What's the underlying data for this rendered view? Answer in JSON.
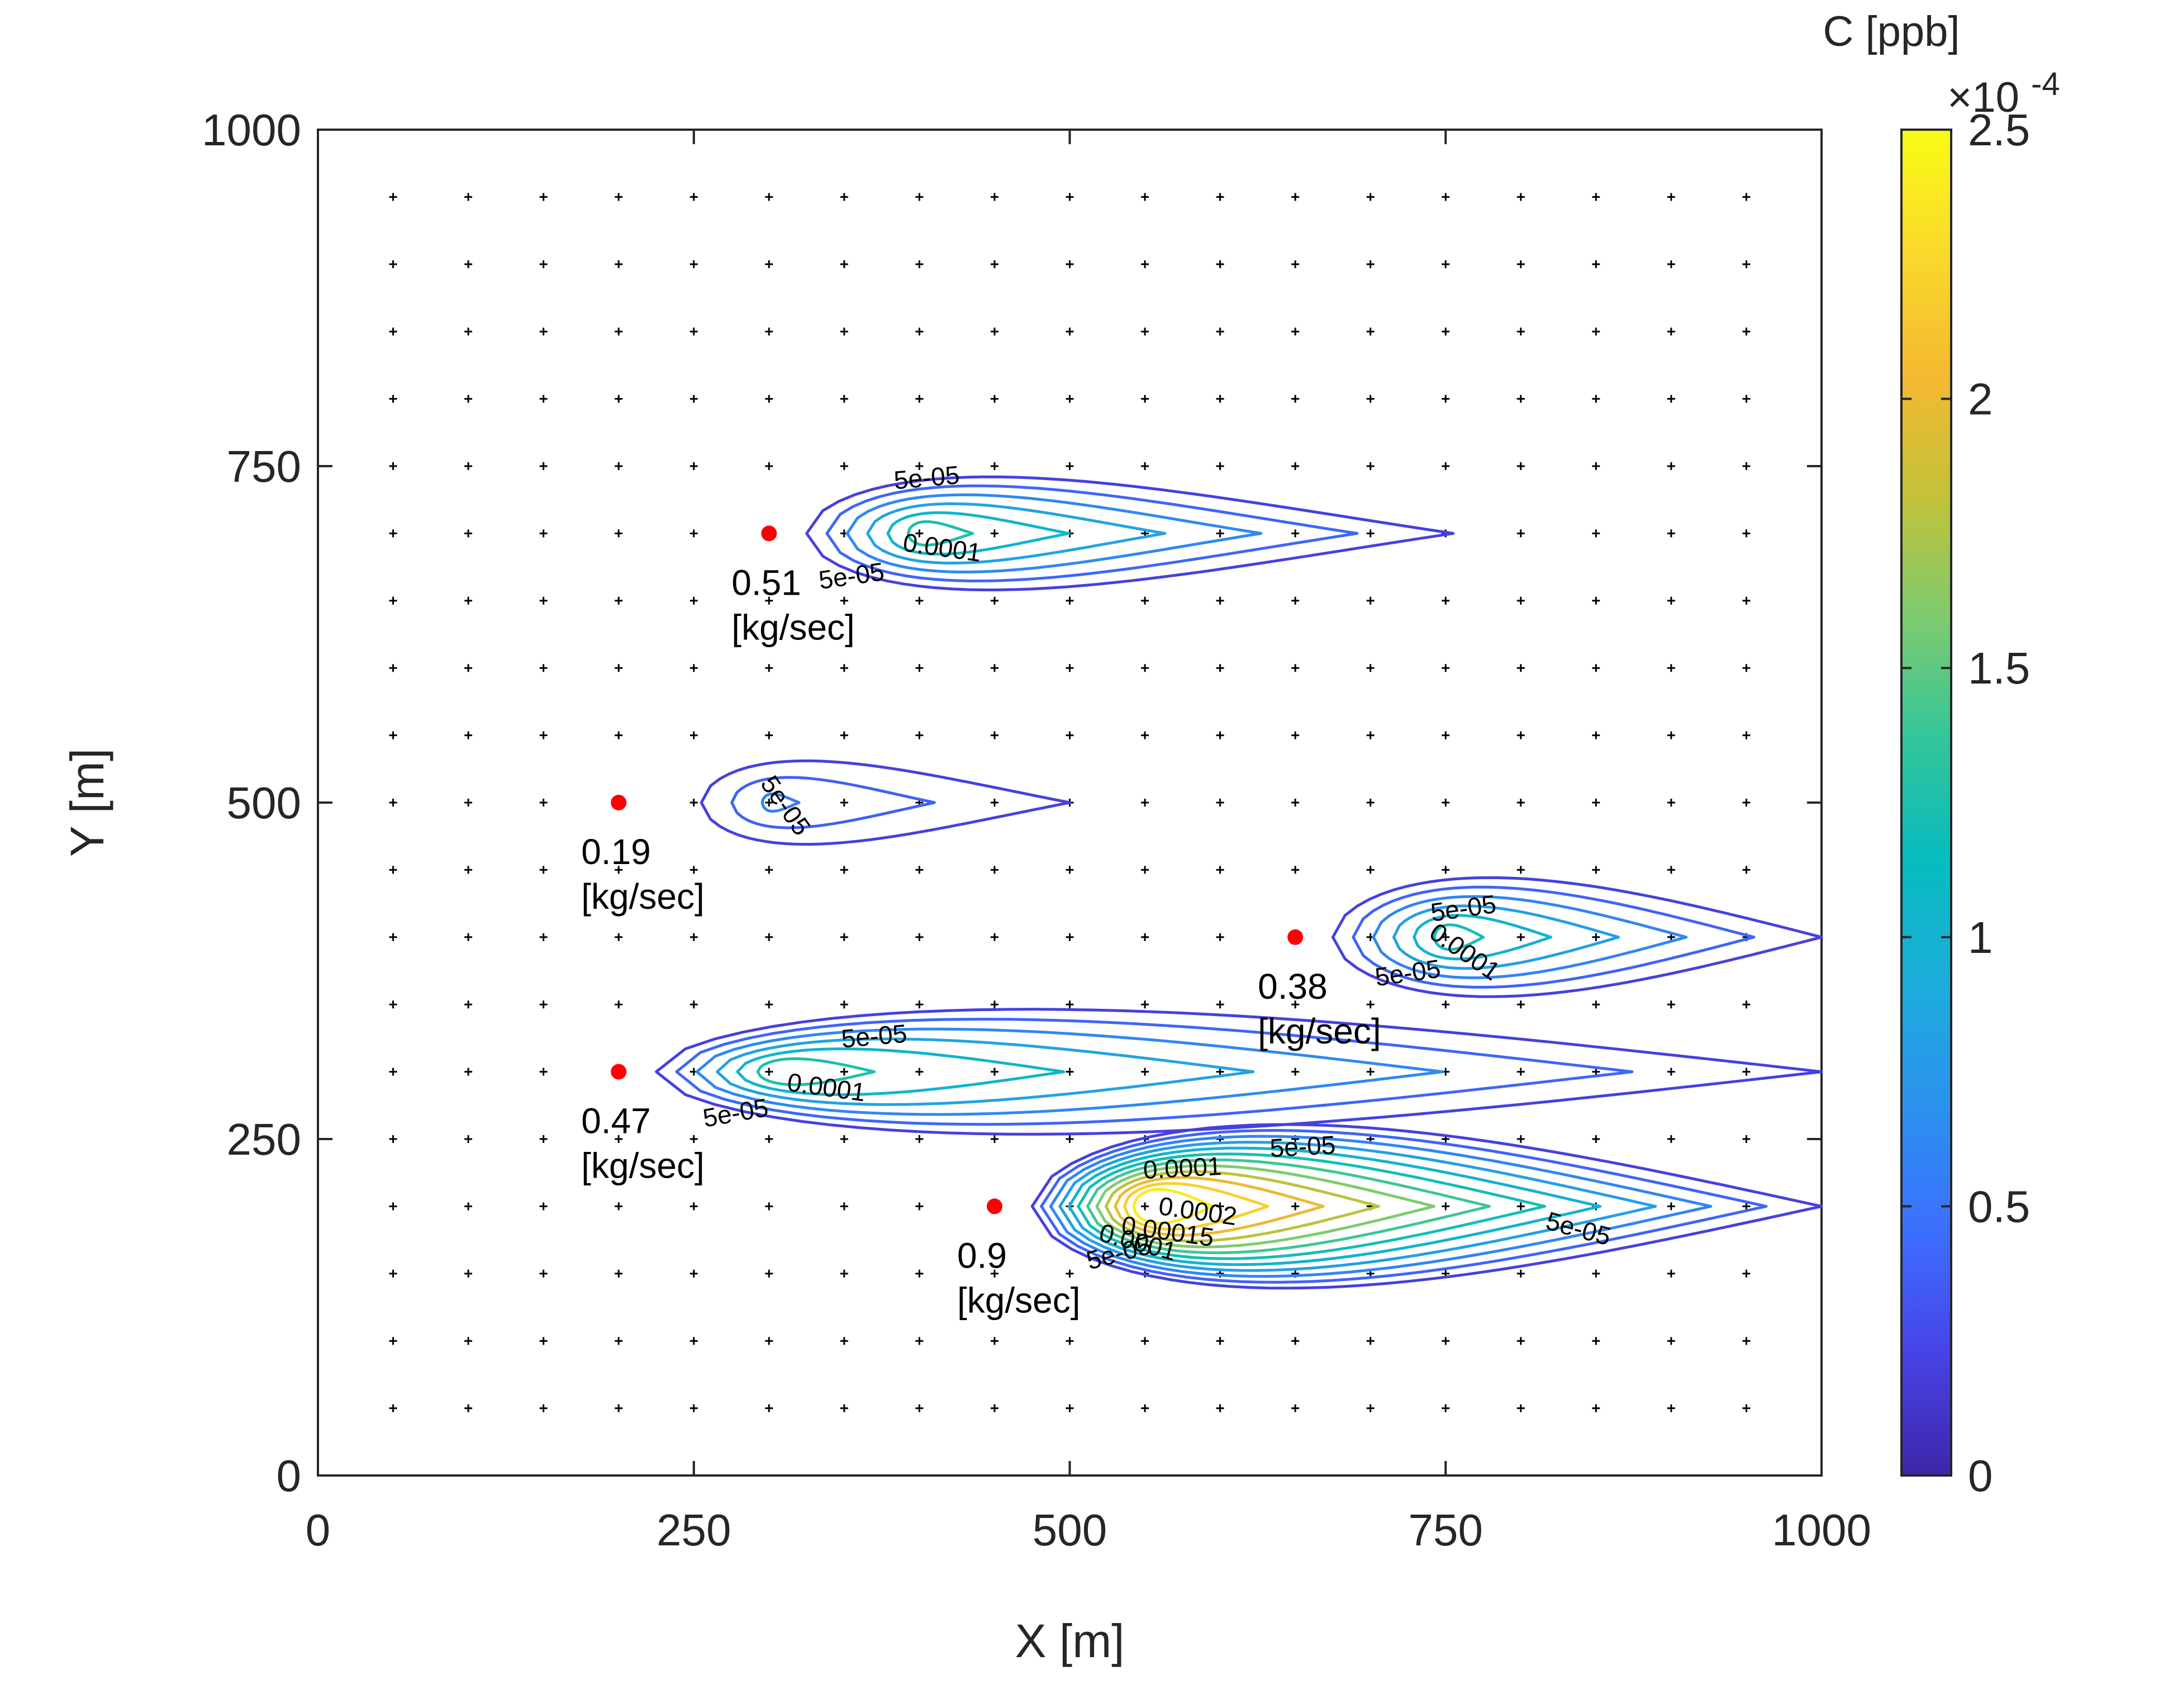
{
  "chart_data": {
    "type": "contour",
    "xlabel": "X [m]",
    "ylabel": "Y [m]",
    "xlim": [
      0,
      1000
    ],
    "ylim": [
      0,
      1000
    ],
    "xticks": [
      "0",
      "250",
      "500",
      "750",
      "1000"
    ],
    "yticks": [
      "0",
      "250",
      "500",
      "750",
      "1000"
    ],
    "grid": false,
    "receptor_grid": {
      "x_start": 50,
      "x_end": 950,
      "y_start": 50,
      "y_end": 950,
      "step": 50,
      "marker": "+"
    },
    "colorbar": {
      "title": "C [ppb]",
      "multiplier": "×10",
      "exponent": "-4",
      "ticks": [
        "0",
        "0.5",
        "1",
        "1.5",
        "2",
        "2.5"
      ],
      "tick_values": [
        0,
        0.5,
        1,
        1.5,
        2,
        2.5
      ],
      "range": [
        0,
        2.5
      ],
      "colormap": [
        "#3e26a8",
        "#4743e6",
        "#3c6ffe",
        "#2b91ef",
        "#1dacdb",
        "#06bbc0",
        "#32c59b",
        "#7ccb6f",
        "#c2c238",
        "#f5b932",
        "#fad92b",
        "#f9fb15"
      ]
    },
    "sources": [
      {
        "x": 300,
        "y": 700,
        "value": "0.51",
        "unit": "[kg/sec]",
        "color": "#ff0000"
      },
      {
        "x": 200,
        "y": 500,
        "value": "0.19",
        "unit": "[kg/sec]",
        "color": "#ff0000"
      },
      {
        "x": 650,
        "y": 400,
        "value": "0.38",
        "unit": "[kg/sec]",
        "color": "#ff0000"
      },
      {
        "x": 200,
        "y": 300,
        "value": "0.47",
        "unit": "[kg/sec]",
        "color": "#ff0000"
      },
      {
        "x": 450,
        "y": 200,
        "value": "0.9",
        "unit": "[kg/sec]",
        "color": "#ff0000"
      }
    ],
    "plumes": [
      {
        "source": 0,
        "x0": 325,
        "xc": 400,
        "yc": 700,
        "x_end": 755,
        "halfwidth": 42,
        "peak_x": 400,
        "peak_level": 1.25
      },
      {
        "source": 1,
        "x0": 255,
        "xc": 300,
        "yc": 500,
        "x_end": 500,
        "halfwidth": 31,
        "peak_x": 300,
        "peak_level": 0.55
      },
      {
        "source": 2,
        "x0": 675,
        "xc": 750,
        "yc": 400,
        "x_end": 1000,
        "halfwidth": 40,
        "peak_x": 750,
        "peak_level": 1.2
      },
      {
        "source": 3,
        "x0": 225,
        "xc": 300,
        "yc": 300,
        "x_end": 1000,
        "halfwidth": 42,
        "peak_x": 300,
        "peak_level": 1.25
      },
      {
        "source": 4,
        "x0": 475,
        "xc": 550,
        "yc": 200,
        "x_end": 1000,
        "halfwidth": 55,
        "peak_x": 550,
        "peak_level": 2.4
      }
    ],
    "contour_labels": [
      {
        "text": "5e-05",
        "x": 405,
        "y": 740,
        "rotate": 5
      },
      {
        "text": "0.0001",
        "x": 415,
        "y": 688,
        "rotate": -8
      },
      {
        "text": "5e-05",
        "x": 355,
        "y": 667,
        "rotate": 8
      },
      {
        "text": "5e-05",
        "x": 310,
        "y": 497,
        "rotate": -55
      },
      {
        "text": "5e-05",
        "x": 762,
        "y": 420,
        "rotate": 8
      },
      {
        "text": "0.0001",
        "x": 762,
        "y": 388,
        "rotate": -35
      },
      {
        "text": "5e-05",
        "x": 725,
        "y": 372,
        "rotate": 8
      },
      {
        "text": "5e-05",
        "x": 370,
        "y": 325,
        "rotate": 5
      },
      {
        "text": "0.0001",
        "x": 338,
        "y": 287,
        "rotate": -8
      },
      {
        "text": "5e-05",
        "x": 278,
        "y": 268,
        "rotate": 10
      },
      {
        "text": "5e-05",
        "x": 655,
        "y": 243,
        "rotate": 3
      },
      {
        "text": "0.0001",
        "x": 575,
        "y": 227,
        "rotate": 3
      },
      {
        "text": "0.0002",
        "x": 585,
        "y": 195,
        "rotate": -8
      },
      {
        "text": "0.00015",
        "x": 565,
        "y": 180,
        "rotate": -8
      },
      {
        "text": "0.0001",
        "x": 545,
        "y": 172,
        "rotate": -15
      },
      {
        "text": "5e-05",
        "x": 533,
        "y": 164,
        "rotate": 15
      },
      {
        "text": "5e-05",
        "x": 838,
        "y": 182,
        "rotate": -15
      }
    ]
  }
}
